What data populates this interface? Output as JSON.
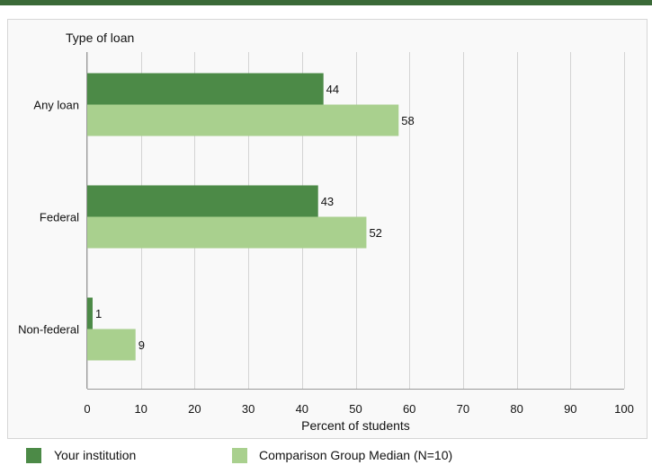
{
  "chart_data": {
    "type": "bar",
    "orientation": "horizontal",
    "category_axis_title": "Type of loan",
    "categories": [
      "Any loan",
      "Federal",
      "Non-federal"
    ],
    "series": [
      {
        "name": "Your institution",
        "color": "#4c8a47",
        "values": [
          44,
          43,
          1
        ]
      },
      {
        "name": "Comparison Group Median (N=10)",
        "color": "#a9d08e",
        "values": [
          58,
          52,
          9
        ]
      }
    ],
    "xlabel": "Percent of students",
    "xlim": [
      0,
      100
    ],
    "xticks": [
      0,
      10,
      20,
      30,
      40,
      50,
      60,
      70,
      80,
      90,
      100
    ],
    "grid": true,
    "legend_position": "bottom-left"
  }
}
